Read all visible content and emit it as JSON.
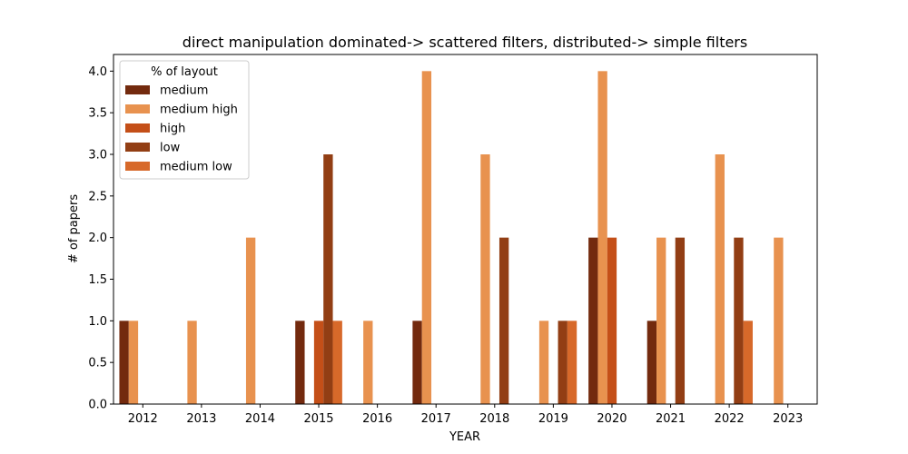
{
  "chart_data": {
    "type": "bar",
    "title": "direct manipulation dominated-> scattered filters, distributed-> simple filters",
    "xlabel": "YEAR",
    "ylabel": "# of papers",
    "ylim": [
      0,
      4.2
    ],
    "yticks": [
      "0.0",
      "0.5",
      "1.0",
      "1.5",
      "2.0",
      "2.5",
      "3.0",
      "3.5",
      "4.0"
    ],
    "categories": [
      "2012",
      "2013",
      "2014",
      "2015",
      "2016",
      "2017",
      "2018",
      "2019",
      "2020",
      "2021",
      "2022",
      "2023"
    ],
    "legend": {
      "title": "% of layout",
      "placement": "top-left"
    },
    "series": [
      {
        "name": "medium",
        "color": "#732a0e",
        "values": [
          1,
          0,
          0,
          1,
          0,
          1,
          0,
          0,
          2,
          1,
          0,
          0
        ]
      },
      {
        "name": "medium high",
        "color": "#e8924f",
        "values": [
          1,
          1,
          2,
          0,
          1,
          4,
          3,
          1,
          4,
          2,
          3,
          2
        ]
      },
      {
        "name": "high",
        "color": "#c44f18",
        "values": [
          0,
          0,
          0,
          1,
          0,
          0,
          0,
          0,
          2,
          0,
          0,
          0
        ]
      },
      {
        "name": "low",
        "color": "#923e14",
        "values": [
          0,
          0,
          0,
          3,
          0,
          0,
          2,
          1,
          0,
          2,
          2,
          0
        ]
      },
      {
        "name": "medium low",
        "color": "#d7692a",
        "values": [
          0,
          0,
          0,
          1,
          0,
          0,
          0,
          1,
          0,
          0,
          1,
          0
        ]
      }
    ],
    "grid": false
  }
}
